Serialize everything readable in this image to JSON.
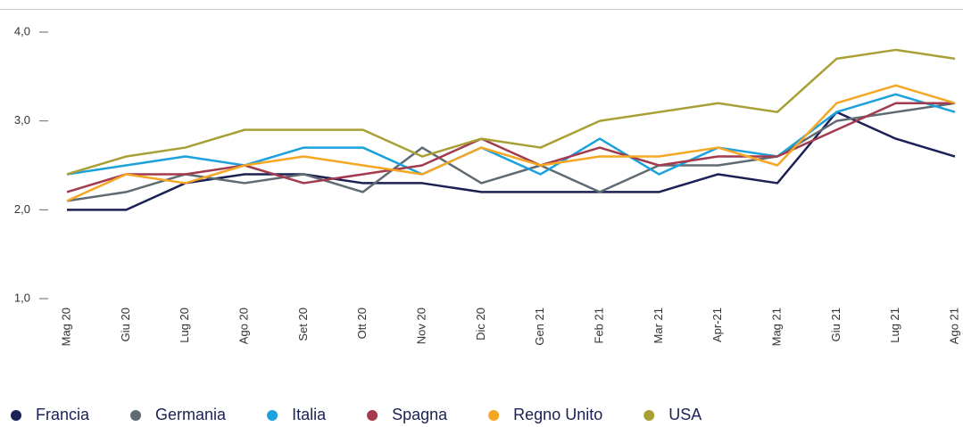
{
  "chart_data": {
    "type": "line",
    "categories": [
      "Mag 20",
      "Giu 20",
      "Lug 20",
      "Ago 20",
      "Set 20",
      "Ott 20",
      "Nov 20",
      "Dic 20",
      "Gen 21",
      "Feb 21",
      "Mar 21",
      "Apr-21",
      "Mag 21",
      "Giu 21",
      "Lug 21",
      "Ago 21"
    ],
    "series": [
      {
        "name": "Francia",
        "color": "#1b2155",
        "values": [
          2.0,
          2.0,
          2.3,
          2.4,
          2.4,
          2.3,
          2.3,
          2.2,
          2.2,
          2.2,
          2.2,
          2.4,
          2.3,
          3.1,
          2.8,
          2.6
        ]
      },
      {
        "name": "Germania",
        "color": "#5f6b73",
        "values": [
          2.1,
          2.2,
          2.4,
          2.3,
          2.4,
          2.2,
          2.7,
          2.3,
          2.5,
          2.2,
          2.5,
          2.5,
          2.6,
          3.0,
          3.1,
          3.2
        ]
      },
      {
        "name": "Italia",
        "color": "#1ba1dc",
        "values": [
          2.4,
          2.5,
          2.6,
          2.5,
          2.7,
          2.7,
          2.4,
          2.7,
          2.4,
          2.8,
          2.4,
          2.7,
          2.6,
          3.1,
          3.3,
          3.1
        ]
      },
      {
        "name": "Spagna",
        "color": "#a33a4e",
        "values": [
          2.2,
          2.4,
          2.4,
          2.5,
          2.3,
          2.4,
          2.5,
          2.8,
          2.5,
          2.7,
          2.5,
          2.6,
          2.6,
          2.9,
          3.2,
          3.2
        ]
      },
      {
        "name": "Regno Unito",
        "color": "#f5a623",
        "values": [
          2.1,
          2.4,
          2.3,
          2.5,
          2.6,
          2.5,
          2.4,
          2.7,
          2.5,
          2.6,
          2.6,
          2.7,
          2.5,
          3.2,
          3.4,
          3.2
        ]
      },
      {
        "name": "USA",
        "color": "#a8a035",
        "values": [
          2.4,
          2.6,
          2.7,
          2.9,
          2.9,
          2.9,
          2.6,
          2.8,
          2.7,
          3.0,
          3.1,
          3.2,
          3.1,
          3.7,
          3.8,
          3.7
        ]
      }
    ],
    "ylim": [
      1,
      4
    ],
    "yticks": [
      {
        "value": 1,
        "label": "1,0"
      },
      {
        "value": 2,
        "label": "2,0"
      },
      {
        "value": 3,
        "label": "3,0"
      },
      {
        "value": 4,
        "label": "4,0"
      }
    ],
    "grid": false,
    "legend": "bottom"
  }
}
